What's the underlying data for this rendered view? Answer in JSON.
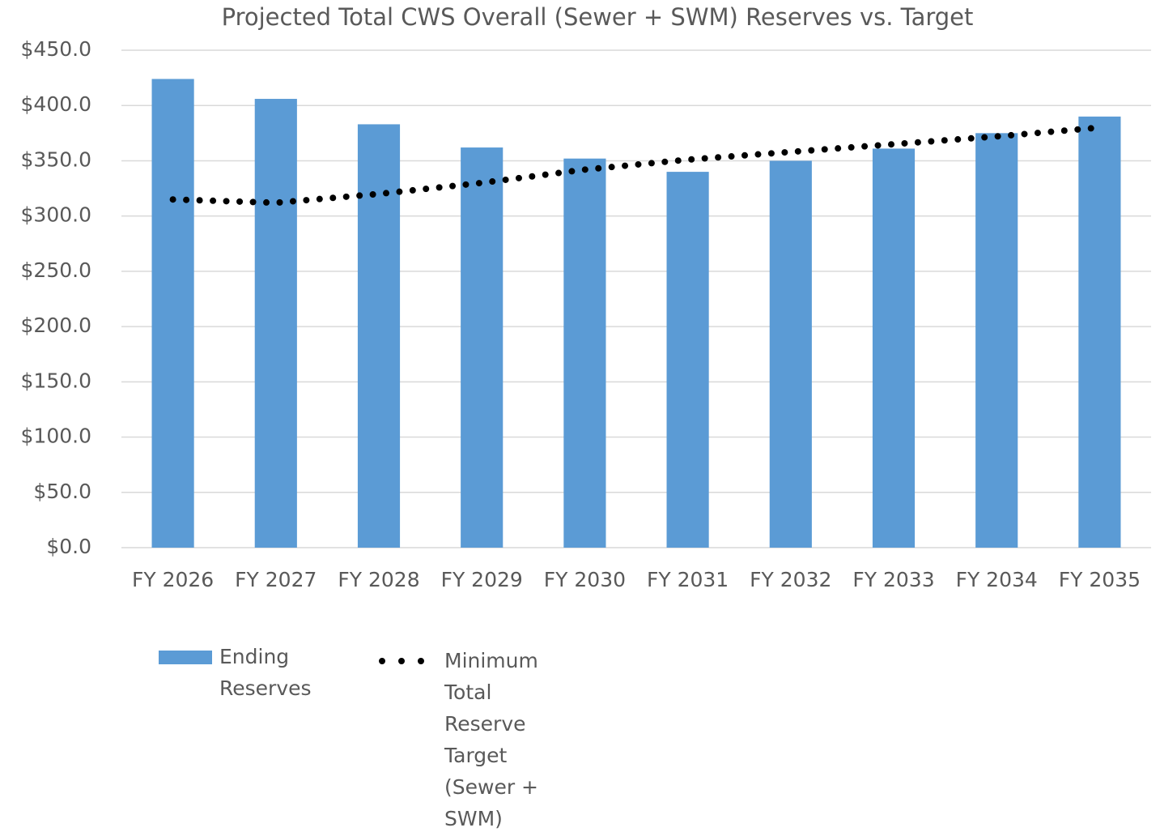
{
  "chart_data": {
    "type": "bar",
    "title": "Projected Total CWS Overall (Sewer + SWM) Reserves vs. Target",
    "categories": [
      "FY 2026",
      "FY 2027",
      "FY 2028",
      "FY 2029",
      "FY 2030",
      "FY 2031",
      "FY 2032",
      "FY 2033",
      "FY 2034",
      "FY 2035"
    ],
    "series": [
      {
        "name": "Ending Reserves",
        "type": "bar",
        "color": "#5b9bd5",
        "values": [
          424,
          406,
          383,
          362,
          352,
          340,
          350,
          361,
          375,
          390
        ]
      },
      {
        "name": "Minimum Total Reserve Target (Sewer + SWM)",
        "type": "line",
        "color": "#000000",
        "values": [
          315,
          312,
          320,
          330,
          342,
          351,
          358,
          365,
          372,
          380
        ]
      }
    ],
    "ylim": [
      0,
      450
    ],
    "yticks": [
      {
        "value": 0,
        "label": "$0.0"
      },
      {
        "value": 50,
        "label": "$50.0"
      },
      {
        "value": 100,
        "label": "$100.0"
      },
      {
        "value": 150,
        "label": "$150.0"
      },
      {
        "value": 200,
        "label": "$200.0"
      },
      {
        "value": 250,
        "label": "$250.0"
      },
      {
        "value": 300,
        "label": "$300.0"
      },
      {
        "value": 350,
        "label": "$350.0"
      },
      {
        "value": 400,
        "label": "$400.0"
      },
      {
        "value": 450,
        "label": "$450.0"
      }
    ],
    "grid": true,
    "legend": "bottom"
  }
}
